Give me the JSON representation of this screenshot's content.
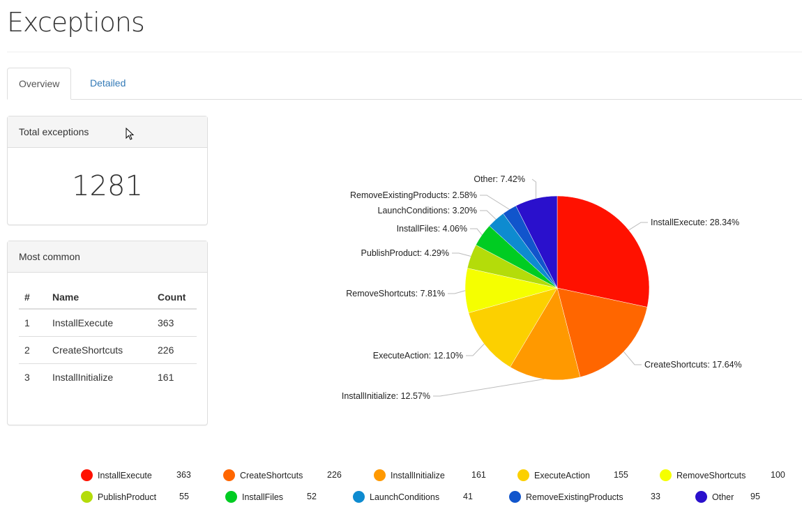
{
  "page_title": "Exceptions",
  "tabs": [
    {
      "label": "Overview",
      "active": true
    },
    {
      "label": "Detailed",
      "active": false
    }
  ],
  "total_panel": {
    "title": "Total exceptions",
    "value": "1281"
  },
  "common_panel": {
    "title": "Most common",
    "headers": [
      "#",
      "Name",
      "Count"
    ],
    "rows": [
      [
        "1",
        "InstallExecute",
        "363"
      ],
      [
        "2",
        "CreateShortcuts",
        "226"
      ],
      [
        "3",
        "InstallInitialize",
        "161"
      ]
    ]
  },
  "chart_data": {
    "type": "pie",
    "categories": [
      "InstallExecute",
      "CreateShortcuts",
      "InstallInitialize",
      "ExecuteAction",
      "RemoveShortcuts",
      "PublishProduct",
      "InstallFiles",
      "LaunchConditions",
      "RemoveExistingProducts",
      "Other"
    ],
    "values": [
      363,
      226,
      161,
      155,
      100,
      55,
      52,
      41,
      33,
      95
    ],
    "labels": [
      "InstallExecute: 28.34%",
      "CreateShortcuts: 17.64%",
      "InstallInitialize: 12.57%",
      "ExecuteAction: 12.10%",
      "RemoveShortcuts: 7.81%",
      "PublishProduct: 4.29%",
      "InstallFiles: 4.06%",
      "LaunchConditions: 3.20%",
      "RemoveExistingProducts: 2.58%",
      "Other: 7.42%"
    ],
    "colors": [
      "#ff1100",
      "#ff6600",
      "#ff9900",
      "#fcd000",
      "#f5ff00",
      "#b4dc0a",
      "#00cc22",
      "#0e8bd0",
      "#1155cc",
      "#2a10cc"
    ],
    "legend": "bottom"
  }
}
